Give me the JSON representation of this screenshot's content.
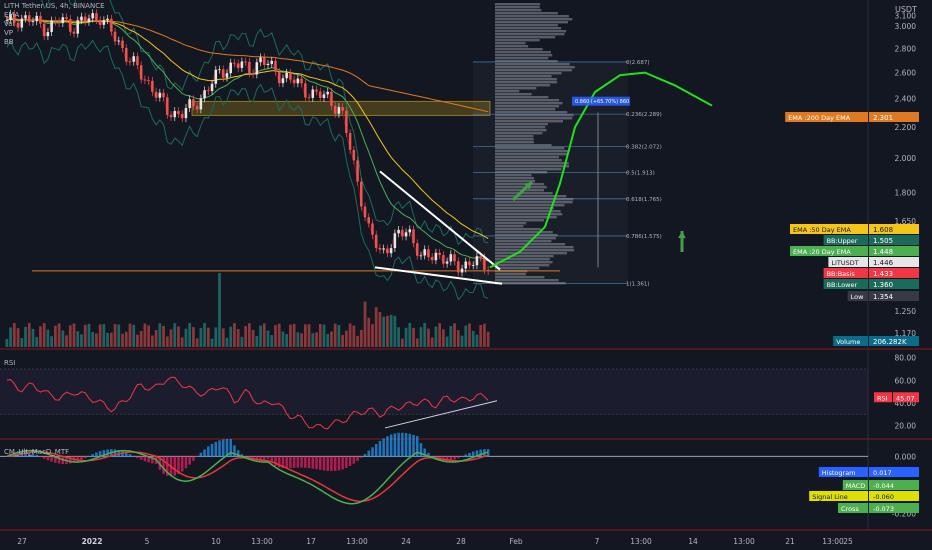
{
  "header": {
    "symbol": "LITH Tether US, 4h, BINANCE",
    "indicators": [
      "EMA",
      "Vol",
      "VP",
      "BB"
    ],
    "currency": "USDT"
  },
  "colors": {
    "background": "#131722",
    "up": "#e6e6e6",
    "down": "#ef5350",
    "ema50": "#f5c518",
    "ema200": "#e07a21",
    "ema20": "#4caf50",
    "bb": "#1b6b5a",
    "projection": "#22e01e",
    "rsi": "#f23645",
    "macd": "#4caf50",
    "signal": "#e0e000"
  },
  "chart_data": [
    {
      "type": "line",
      "title": "LITH Tether US, 4h, BINANCE",
      "yscale": "log",
      "ylim": [
        1.12,
        3.2
      ],
      "y_ticks": [
        "3.100",
        "3.000",
        "2.800",
        "2.600",
        "2.400",
        "2.200",
        "2.000",
        "1.800",
        "1.650",
        "1.250",
        "1.170"
      ],
      "x_ticks": [
        "27",
        "2022",
        "5",
        "10",
        "13:00",
        "17",
        "13:00",
        "24",
        "28",
        "Feb",
        "7",
        "13:00",
        "14",
        "13:00",
        "21",
        "13:00",
        "25"
      ],
      "series": [
        {
          "name": "LITUSDT",
          "values": [
            3.02,
            3.08,
            3.04,
            2.98,
            3.05,
            3.0,
            3.06,
            3.1,
            2.9,
            2.75,
            2.58,
            2.48,
            2.3,
            2.3,
            2.34,
            2.48,
            2.6,
            2.68,
            2.62,
            2.7,
            2.62,
            2.55,
            2.5,
            2.42,
            2.42,
            2.3,
            1.95,
            1.6,
            1.5,
            1.55,
            1.62,
            1.46,
            1.5,
            1.45,
            1.44,
            1.45,
            1.446
          ]
        }
      ],
      "fibonacci": [
        {
          "level": "0(2.687)",
          "value": 2.687
        },
        {
          "level": "0.236(2.289)",
          "value": 2.289
        },
        {
          "level": "0.382(2.072)",
          "value": 2.072
        },
        {
          "level": "0.5(1.913)",
          "value": 1.913
        },
        {
          "level": "0.618(1.765)",
          "value": 1.765
        },
        {
          "level": "0.786(1.575)",
          "value": 1.575
        },
        {
          "level": "1(1.361)",
          "value": 1.361
        }
      ],
      "measure_label": "0.860 (+65.70%) 860",
      "price_labels": [
        {
          "name": "EMA :200 Day EMA",
          "value": "2.301",
          "color": "#e07a21"
        },
        {
          "name": "EMA :50 Day EMA",
          "value": "1.608",
          "color": "#f5c518"
        },
        {
          "name": "BB:Upper",
          "value": "1.505",
          "color": "#1b6b5a"
        },
        {
          "name": "EMA :20 Day EMA",
          "value": "1.448",
          "color": "#4caf50"
        },
        {
          "name": "LITUSDT",
          "value": "1.446",
          "color": "#e6e6e6"
        },
        {
          "name": "BB:Basis",
          "value": "1.433",
          "color": "#f23645"
        },
        {
          "name": "BB:Lower",
          "value": "1.360",
          "color": "#1b6b5a"
        },
        {
          "name": "Low",
          "value": "1.354",
          "color": "#363a45"
        },
        {
          "name": "Volume",
          "value": "206.282K",
          "color": "#0a6c8a"
        }
      ]
    },
    {
      "type": "line",
      "title": "RSI",
      "ylim": [
        10,
        85
      ],
      "y_ticks": [
        "80.00",
        "60.00",
        "40.00",
        "20.00"
      ],
      "series": [
        {
          "name": "RSI",
          "values": [
            60,
            52,
            56,
            48,
            44,
            50,
            46,
            40,
            34,
            44,
            56,
            52,
            62,
            58,
            50,
            48,
            56,
            42,
            50,
            38,
            42,
            30,
            26,
            18,
            20,
            24,
            30,
            34,
            30,
            36,
            38,
            42,
            38,
            45,
            42,
            46,
            45.07
          ]
        }
      ],
      "label": {
        "name": "RSI",
        "value": "45.07"
      }
    },
    {
      "type": "bar",
      "title": "CM_Ult_MacD_MTF",
      "ylim": [
        -0.25,
        0.05
      ],
      "y_ticks": [
        "0.000",
        "-0.200"
      ],
      "labels": [
        {
          "name": "Histogram",
          "value": "0.017"
        },
        {
          "name": "MACD",
          "value": "-0.044"
        },
        {
          "name": "Signal Line",
          "value": "-0.060"
        },
        {
          "name": "Cross",
          "value": "-0.073"
        }
      ]
    }
  ]
}
